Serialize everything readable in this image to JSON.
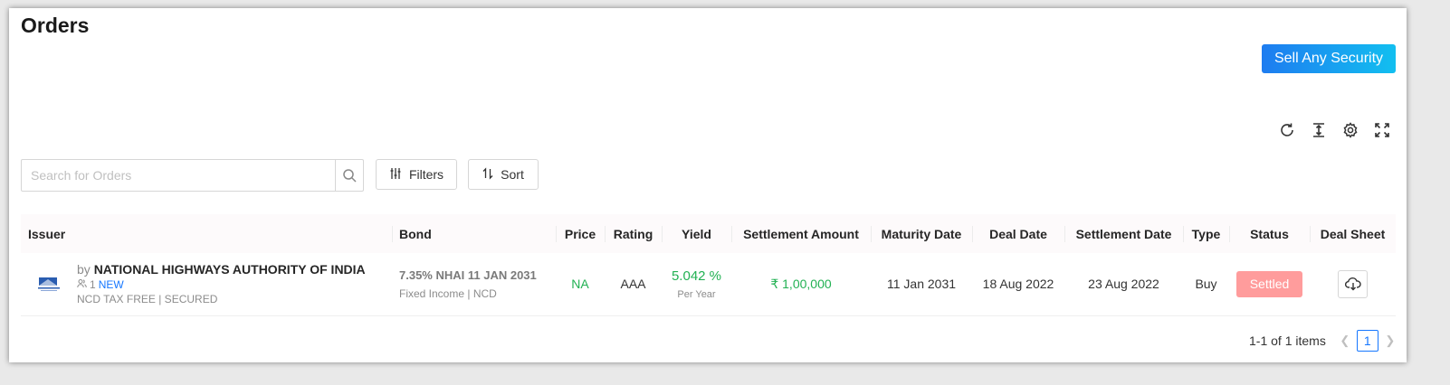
{
  "header": {
    "title": "Orders",
    "sell_button": "Sell Any Security"
  },
  "toolbar": {
    "icons": [
      "refresh-icon",
      "column-height-icon",
      "settings-icon",
      "fullscreen-icon"
    ],
    "search_placeholder": "Search for Orders",
    "filters_label": "Filters",
    "sort_label": "Sort"
  },
  "table": {
    "columns": [
      "Issuer",
      "Bond",
      "Price",
      "Rating",
      "Yield",
      "Settlement Amount",
      "Maturity Date",
      "Deal Date",
      "Settlement Date",
      "Type",
      "Status",
      "Deal Sheet"
    ],
    "rows": [
      {
        "issuer_by": "by",
        "issuer_name": "NATIONAL HIGHWAYS AUTHORITY OF INDIA",
        "holders": "1",
        "new_tag": "NEW",
        "issuer_tags": "NCD TAX FREE | SECURED",
        "bond_name": "7.35% NHAI 11 JAN 2031",
        "bond_type": "Fixed Income | NCD",
        "price": "NA",
        "rating": "AAA",
        "yield": "5.042 %",
        "yield_period": "Per Year",
        "settlement_amount": "₹ 1,00,000",
        "maturity_date": "11 Jan 2031",
        "deal_date": "18 Aug 2022",
        "settlement_date": "23 Aug 2022",
        "type": "Buy",
        "status": "Settled"
      }
    ]
  },
  "pagination": {
    "summary": "1-1 of 1 items",
    "current_page": "1"
  },
  "colors": {
    "accent": "#1677ff",
    "positive": "#22b153",
    "settled_badge": "#ff9c9c"
  }
}
